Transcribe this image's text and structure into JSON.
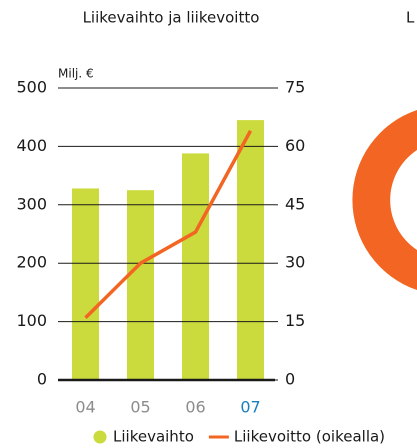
{
  "chart_data": {
    "type": "bar-line",
    "title": "Liikevaihto ja liikevoitto",
    "unit_label": "Milj. €",
    "categories": [
      "04",
      "05",
      "06",
      "07"
    ],
    "category_label_colors": [
      "#8c8c8c",
      "#8c8c8c",
      "#8c8c8c",
      "#1a7fc1"
    ],
    "series": [
      {
        "name": "Liikevaihto",
        "type": "bar",
        "color": "#cbda3c",
        "values": [
          328,
          325,
          388,
          445
        ]
      },
      {
        "name": "Liikevoitto (oikealla)",
        "type": "line",
        "color": "#f26522",
        "axis": "y2",
        "values": [
          16,
          30,
          38,
          64
        ]
      }
    ],
    "ylim": [
      0,
      500
    ],
    "yticks": [
      0,
      100,
      200,
      300,
      400,
      500
    ],
    "y2lim": [
      0,
      75
    ],
    "y2ticks": [
      0,
      15,
      30,
      45,
      60,
      75
    ],
    "grid": true
  },
  "clipped_chart": {
    "title": "L",
    "color": "#f26522"
  }
}
